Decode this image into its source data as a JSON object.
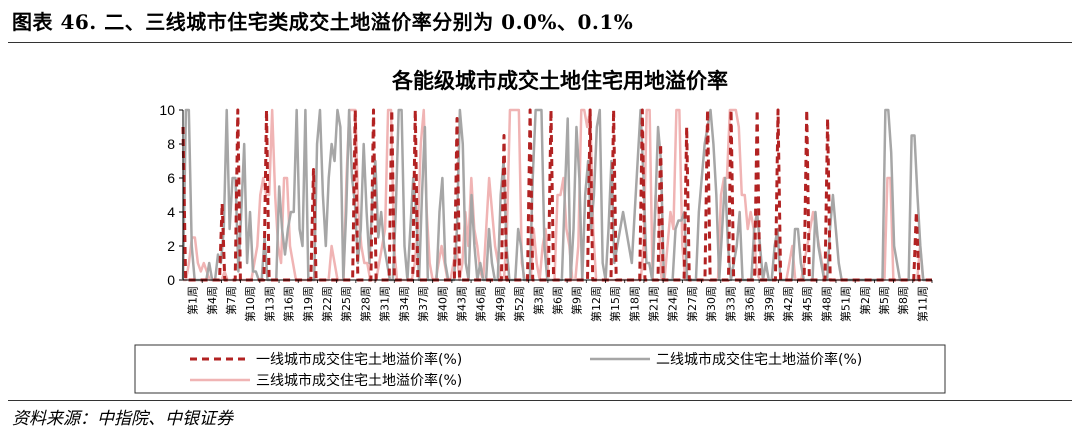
{
  "figure": {
    "label": "图表 46. 二、三线城市住宅类成交土地溢价率分别为 0.0%、0.1%",
    "source": "资料来源：中指院、中银证券"
  },
  "colors": {
    "tier1": "#b22222",
    "tier2": "#a6a6a6",
    "tier3": "#f0b4b4",
    "axis": "#000000"
  },
  "chart_data": {
    "type": "line",
    "title": "各能级城市成交土地住宅用地溢价率",
    "ylim": [
      0,
      10
    ],
    "yticks": [
      0,
      2,
      4,
      6,
      8,
      10
    ],
    "categories_shown": [
      "第1周",
      "第4周",
      "第7周",
      "第10周",
      "第13周",
      "第16周",
      "第19周",
      "第22周",
      "第25周",
      "第28周",
      "第31周",
      "第34周",
      "第37周",
      "第40周",
      "第43周",
      "第46周",
      "第49周",
      "第52周",
      "第3周",
      "第6周",
      "第9周",
      "第12周",
      "第15周",
      "第18周",
      "第21周",
      "第24周",
      "第27周",
      "第30周",
      "第33周",
      "第36周",
      "第39周",
      "第42周",
      "第45周",
      "第48周",
      "第51周",
      "第2周",
      "第5周",
      "第8周",
      "第11周"
    ],
    "legend_position": "bottom",
    "series": [
      {
        "name": "一线城市成交住宅土地溢价率(%)",
        "style": "dashed",
        "values": [
          9,
          0,
          0,
          0,
          0,
          0,
          0,
          0,
          0,
          0,
          0,
          0,
          0,
          0,
          0,
          4.5,
          0,
          0,
          0,
          0,
          0,
          10,
          0,
          0,
          0,
          0,
          0,
          0,
          0,
          0,
          0,
          0,
          10,
          0,
          0,
          0,
          0,
          0,
          0,
          0,
          0,
          0,
          0,
          0,
          0,
          0,
          0,
          0,
          0,
          0,
          6.5,
          0,
          0,
          0,
          0,
          0,
          0,
          0,
          0,
          0,
          0,
          0,
          0,
          0,
          0,
          0,
          10,
          0,
          0,
          0,
          0,
          0,
          0,
          10,
          0,
          0,
          0,
          0,
          0,
          0,
          10,
          0,
          0,
          0,
          0,
          0,
          0,
          0,
          0,
          10,
          0,
          0,
          0,
          0,
          0,
          0,
          0,
          0,
          0,
          0,
          0,
          0,
          0,
          0,
          0,
          9.5,
          0,
          0,
          0,
          0,
          0,
          0,
          0,
          0,
          0,
          0,
          0,
          0,
          0,
          0,
          0,
          0,
          0,
          8.5,
          0,
          0,
          0,
          0,
          0,
          0,
          0,
          0,
          0,
          10,
          0,
          0,
          0,
          0,
          0,
          0,
          0,
          10,
          0,
          0,
          0,
          0,
          0,
          0,
          0,
          0,
          0,
          0,
          0,
          0,
          0,
          0,
          10,
          0,
          0,
          0,
          0,
          0,
          0,
          0,
          0,
          10,
          0,
          0,
          0,
          0,
          0,
          0,
          0,
          0,
          0,
          0,
          10,
          0,
          0,
          0,
          0,
          0,
          0,
          8,
          0,
          0,
          0,
          0,
          0,
          0,
          0,
          0,
          0,
          9,
          0,
          0,
          0,
          0,
          0,
          0,
          0,
          10,
          0,
          0,
          0,
          0,
          0,
          0,
          0,
          0,
          10,
          0,
          0,
          0,
          0,
          0,
          0,
          0,
          0,
          0,
          10,
          0,
          0,
          0,
          0,
          0,
          0,
          0,
          10,
          0,
          0,
          0,
          0,
          0,
          0,
          0,
          0,
          0,
          0,
          10,
          0,
          0,
          0,
          0,
          0,
          0,
          0,
          9.5,
          0,
          0,
          0,
          0,
          0,
          0,
          0,
          0,
          0,
          0,
          0,
          0,
          0,
          0,
          0,
          0,
          0,
          0,
          0,
          0,
          0,
          0,
          0,
          0,
          0,
          0,
          0,
          0,
          0,
          0,
          0,
          0,
          0,
          4,
          0,
          0,
          0,
          0,
          0,
          0
        ]
      },
      {
        "name": "二线城市成交住宅土地溢价率(%)",
        "style": "solid",
        "values": [
          0,
          10,
          10,
          2,
          0,
          0,
          0,
          0,
          0,
          1,
          0,
          0,
          1.5,
          1,
          3,
          10,
          3,
          6,
          6,
          0.5,
          4,
          8,
          1,
          4,
          0.5,
          0.5,
          0,
          0,
          2.5,
          0,
          0,
          0,
          0,
          5.5,
          3,
          1.5,
          3,
          4,
          4,
          10,
          3,
          2,
          10,
          0,
          0,
          0,
          8,
          10,
          5,
          2,
          6,
          8,
          7,
          10,
          9,
          0,
          4,
          10,
          6,
          4.5,
          1,
          3,
          8,
          4,
          1,
          5,
          7,
          2.5,
          4,
          2,
          1,
          0,
          0,
          4,
          10,
          10,
          2,
          0,
          3,
          6,
          4,
          0,
          5,
          9,
          0,
          0,
          0,
          0,
          4,
          6,
          1,
          0,
          0,
          0,
          3,
          10,
          8,
          1,
          0,
          5,
          2,
          0,
          1,
          0,
          0,
          3,
          1,
          0,
          0,
          5,
          7,
          2,
          0,
          0,
          0,
          3,
          2,
          0,
          0,
          0,
          6,
          10,
          10,
          10,
          2,
          0,
          0,
          0,
          0,
          0,
          0,
          5,
          9.5,
          0,
          3,
          9,
          6,
          0,
          5,
          7,
          3,
          5,
          9,
          10,
          1,
          0,
          3,
          7,
          1,
          2,
          3,
          4,
          3,
          2,
          1,
          4,
          7,
          10,
          6,
          1,
          1,
          0,
          4,
          9,
          7,
          0,
          0,
          0,
          0,
          3,
          3.5,
          3.5,
          4,
          0,
          0,
          0,
          0,
          4,
          6,
          8,
          9,
          10,
          8,
          5,
          0,
          3,
          6,
          2,
          0,
          1,
          2,
          4,
          0,
          0,
          0,
          0,
          3,
          4,
          2,
          0,
          1,
          0,
          0,
          2,
          3,
          0,
          0,
          0,
          0,
          0,
          3,
          3,
          1,
          0,
          0,
          0,
          0,
          4,
          2,
          1,
          0,
          0,
          3,
          5,
          3,
          1,
          0,
          0,
          0,
          0,
          0,
          0,
          0,
          0,
          0,
          0,
          0,
          0,
          0,
          0,
          0,
          10,
          10,
          7.5,
          2,
          1,
          0,
          0,
          0,
          0,
          8.5,
          8.5,
          5,
          2,
          0,
          0,
          0,
          0
        ]
      },
      {
        "name": "三线城市成交住宅土地溢价率(%)",
        "style": "solid",
        "values": [
          0,
          0,
          1,
          2.5,
          2.5,
          1,
          0.5,
          1,
          0.5,
          0,
          0,
          0,
          0,
          0,
          0.5,
          0,
          0,
          0,
          0,
          0,
          0,
          0,
          0,
          0,
          1,
          2,
          5,
          6,
          5,
          5,
          10,
          5,
          2,
          1,
          6,
          6,
          2,
          1,
          0,
          0,
          0,
          0,
          0,
          0,
          0,
          0,
          0,
          0,
          0,
          0,
          2,
          1,
          0,
          0,
          0,
          6,
          10,
          10,
          10,
          4,
          2,
          1,
          1,
          0,
          0,
          0,
          1,
          2,
          3,
          10,
          10,
          2,
          0,
          0,
          0,
          0,
          0,
          0,
          1,
          3,
          8,
          10,
          4,
          1,
          0,
          0,
          1,
          2,
          1,
          0,
          0,
          1,
          2,
          0,
          1,
          4,
          2,
          6,
          3,
          2,
          0.5,
          0,
          3,
          6,
          4,
          2,
          1,
          0,
          0,
          3,
          10,
          10,
          10,
          10,
          1,
          0,
          0,
          0,
          3,
          1,
          0,
          2,
          3,
          0,
          0,
          0,
          5,
          5,
          6,
          3,
          2,
          0,
          0,
          2,
          10,
          10,
          9,
          10,
          3,
          0,
          0,
          0,
          0,
          0,
          0,
          0,
          0,
          0,
          0,
          0,
          0,
          0,
          0,
          0,
          0,
          2,
          10,
          10,
          0,
          5,
          4,
          0,
          0,
          2,
          4,
          3,
          10,
          10,
          2,
          0,
          0,
          0,
          0,
          0,
          0,
          0,
          0,
          0,
          0,
          0,
          0,
          5,
          6,
          6,
          10,
          10,
          10,
          9,
          5,
          5,
          3,
          4,
          3,
          0.5,
          0,
          0,
          0,
          0,
          0,
          0,
          0,
          0,
          0,
          0,
          1,
          2,
          0,
          0,
          0,
          1,
          2,
          3,
          4,
          3,
          2,
          1,
          0,
          0,
          0,
          0,
          0,
          0,
          0,
          0,
          0,
          0,
          0,
          0,
          0,
          0,
          0,
          0,
          0,
          0,
          0,
          0,
          0,
          6,
          6,
          0,
          0,
          0,
          0,
          0,
          0,
          0,
          0,
          0,
          2,
          0,
          0,
          0,
          0
        ]
      }
    ]
  }
}
